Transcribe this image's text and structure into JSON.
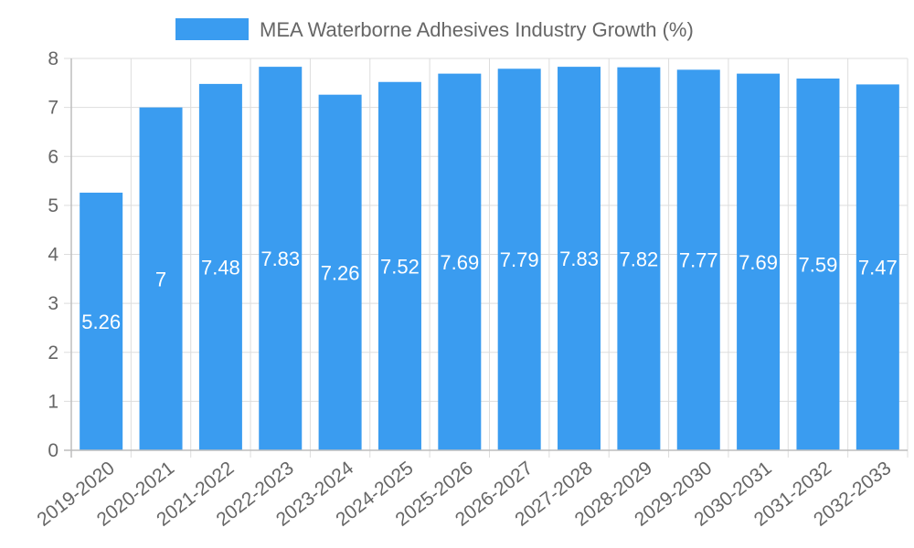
{
  "chart_data": {
    "type": "bar",
    "title": "",
    "legend": {
      "label": "MEA Waterborne Adhesives Industry Growth (%)",
      "position": "top"
    },
    "categories": [
      "2019-2020",
      "2020-2021",
      "2021-2022",
      "2022-2023",
      "2023-2024",
      "2024-2025",
      "2025-2026",
      "2026-2027",
      "2027-2028",
      "2028-2029",
      "2029-2030",
      "2030-2031",
      "2031-2032",
      "2032-2033"
    ],
    "values": [
      5.26,
      7,
      7.48,
      7.83,
      7.26,
      7.52,
      7.69,
      7.79,
      7.83,
      7.82,
      7.77,
      7.69,
      7.59,
      7.47
    ],
    "value_labels": [
      "5.26",
      "7",
      "7.48",
      "7.83",
      "7.26",
      "7.52",
      "7.69",
      "7.79",
      "7.83",
      "7.82",
      "7.77",
      "7.69",
      "7.59",
      "7.47"
    ],
    "ylim": [
      0,
      8
    ],
    "yticks": [
      "0",
      "1",
      "2",
      "3",
      "4",
      "5",
      "6",
      "7",
      "8"
    ],
    "xlabel": "",
    "ylabel": "",
    "grid": true,
    "bar_color": "#3a9cf0"
  }
}
